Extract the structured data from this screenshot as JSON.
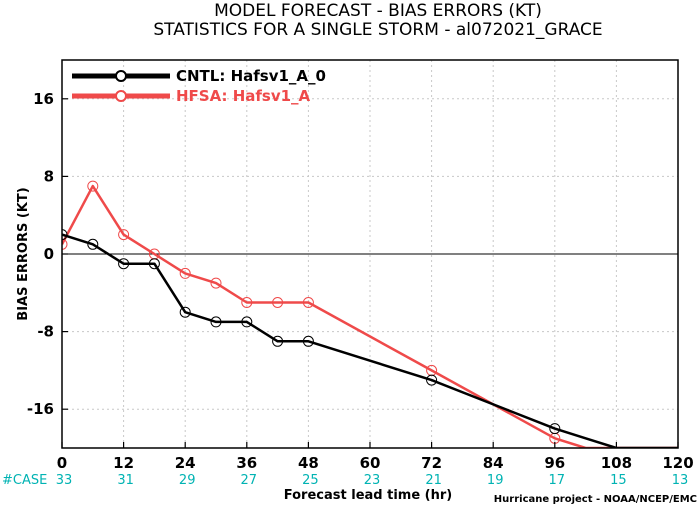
{
  "chart_data": {
    "type": "line",
    "title": "MODEL FORECAST - BIAS ERRORS (KT)",
    "subtitle": "STATISTICS FOR A SINGLE STORM - al072021_GRACE",
    "xlabel": "Forecast lead time (hr)",
    "ylabel": "BIAS ERRORS (KT)",
    "xlim": [
      0,
      120
    ],
    "ylim": [
      -20,
      20
    ],
    "xticks": [
      0,
      12,
      24,
      36,
      48,
      60,
      72,
      84,
      96,
      108,
      120
    ],
    "yticks": [
      16,
      8,
      0,
      -8,
      -16
    ],
    "grid": true,
    "legend_position": "top-left",
    "series": [
      {
        "name": "CNTL: Hafsv1_A_0",
        "color": "#000000",
        "x": [
          0,
          6,
          12,
          18,
          24,
          30,
          36,
          42,
          48,
          72,
          96,
          102,
          108,
          114,
          120
        ],
        "y": [
          2,
          1,
          -1,
          -1,
          -6,
          -7,
          -7,
          -9,
          -9,
          -13,
          -18,
          -19,
          -20,
          -20,
          -20
        ]
      },
      {
        "name": "HFSA: Hafsv1_A",
        "color": "#ef4a4a",
        "x": [
          0,
          6,
          12,
          18,
          24,
          30,
          36,
          42,
          48,
          72,
          96,
          102,
          108,
          114,
          120
        ],
        "y": [
          1,
          7,
          2,
          0,
          -2,
          -3,
          -5,
          -5,
          -5,
          -12,
          -19,
          -20,
          -20,
          -20,
          -20
        ]
      }
    ],
    "case_label": "#CASE",
    "case_counts": [
      {
        "x": 0,
        "n": "33"
      },
      {
        "x": 12,
        "n": "31"
      },
      {
        "x": 24,
        "n": "29"
      },
      {
        "x": 36,
        "n": "27"
      },
      {
        "x": 48,
        "n": "25"
      },
      {
        "x": 60,
        "n": "23"
      },
      {
        "x": 72,
        "n": "21"
      },
      {
        "x": 84,
        "n": "19"
      },
      {
        "x": 96,
        "n": "17"
      },
      {
        "x": 108,
        "n": "15"
      },
      {
        "x": 120,
        "n": "13"
      }
    ],
    "credit": "Hurricane project - NOAA/NCEP/EMC"
  }
}
